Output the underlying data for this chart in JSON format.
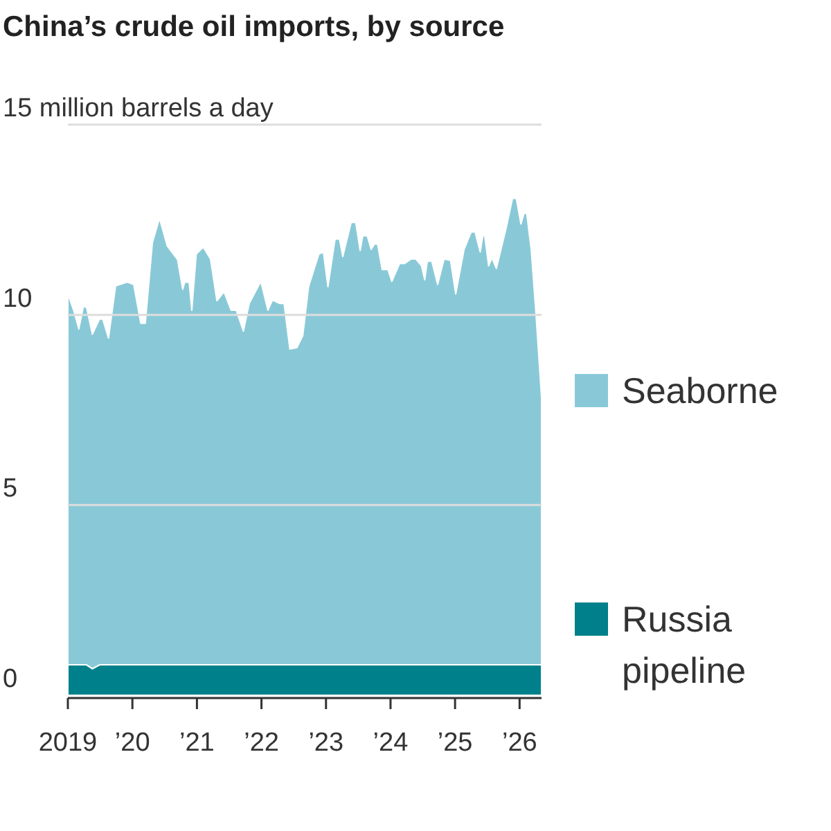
{
  "chart_data": {
    "type": "area",
    "stacked": true,
    "title": "China’s crude oil imports, by source",
    "x": [
      2019.0,
      2019.09,
      2019.17,
      2019.24,
      2019.29,
      2019.38,
      2019.49,
      2019.54,
      2019.63,
      2019.74,
      2019.92,
      2020.02,
      2020.13,
      2020.2,
      2020.31,
      2020.42,
      2020.54,
      2020.7,
      2020.78,
      2020.81,
      2020.88,
      2020.92,
      2020.99,
      2021.1,
      2021.21,
      2021.31,
      2021.42,
      2021.53,
      2021.61,
      2021.72,
      2021.81,
      2021.99,
      2022.1,
      2022.17,
      2022.28,
      2022.35,
      2022.44,
      2022.55,
      2022.64,
      2022.73,
      2022.89,
      2022.96,
      2023.03,
      2023.14,
      2023.21,
      2023.26,
      2023.39,
      2023.46,
      2023.53,
      2023.57,
      2023.64,
      2023.7,
      2023.75,
      2023.8,
      2023.87,
      2023.96,
      2024.02,
      2024.14,
      2024.22,
      2024.32,
      2024.39,
      2024.48,
      2024.53,
      2024.57,
      2024.64,
      2024.73,
      2024.83,
      2024.93,
      2025.01,
      2025.14,
      2025.25,
      2025.31,
      2025.39,
      2025.43,
      2025.46,
      2025.52,
      2025.57,
      2025.64,
      2025.79,
      2025.89,
      2025.95,
      2026.02,
      2026.07,
      2026.11,
      2026.18,
      2026.25,
      2026.34
    ],
    "series": [
      {
        "name": "Russia pipeline",
        "color": "#00808a",
        "values": [
          0.8,
          0.8,
          0.8,
          0.8,
          0.8,
          0.7,
          0.8,
          0.8,
          0.8,
          0.8,
          0.8,
          0.8,
          0.8,
          0.8,
          0.8,
          0.8,
          0.8,
          0.8,
          0.8,
          0.8,
          0.8,
          0.8,
          0.8,
          0.8,
          0.8,
          0.8,
          0.8,
          0.8,
          0.8,
          0.8,
          0.8,
          0.8,
          0.8,
          0.8,
          0.8,
          0.8,
          0.8,
          0.8,
          0.8,
          0.8,
          0.8,
          0.8,
          0.8,
          0.8,
          0.8,
          0.8,
          0.8,
          0.8,
          0.8,
          0.8,
          0.8,
          0.8,
          0.8,
          0.8,
          0.8,
          0.8,
          0.8,
          0.8,
          0.8,
          0.8,
          0.8,
          0.8,
          0.8,
          0.8,
          0.8,
          0.8,
          0.8,
          0.8,
          0.8,
          0.8,
          0.8,
          0.8,
          0.8,
          0.8,
          0.8,
          0.8,
          0.8,
          0.8,
          0.8,
          0.8,
          0.8,
          0.8,
          0.8,
          0.8,
          0.8,
          0.8,
          0.8
        ]
      },
      {
        "name": "Seaborne",
        "color": "#89c9d7",
        "values": [
          9.75,
          9.32,
          8.83,
          9.42,
          9.4,
          8.79,
          9.09,
          9.09,
          8.59,
          9.96,
          10.06,
          10.0,
          8.98,
          8.98,
          11.1,
          11.74,
          11.01,
          10.65,
          9.87,
          10.06,
          10.06,
          9.32,
          10.8,
          10.98,
          10.67,
          9.57,
          9.81,
          9.32,
          9.32,
          8.77,
          9.5,
          10.08,
          9.32,
          9.59,
          9.5,
          9.5,
          8.3,
          8.34,
          8.65,
          9.94,
          10.8,
          10.85,
          9.94,
          11.19,
          11.19,
          10.73,
          11.63,
          11.63,
          10.89,
          11.28,
          11.28,
          10.92,
          11.06,
          11.06,
          10.39,
          10.39,
          10.08,
          10.55,
          10.55,
          10.67,
          10.67,
          10.49,
          10.12,
          10.61,
          10.61,
          10.0,
          10.67,
          10.63,
          9.75,
          10.92,
          11.38,
          11.38,
          10.85,
          11.28,
          11.28,
          10.49,
          10.7,
          10.42,
          11.47,
          12.26,
          12.26,
          11.59,
          11.87,
          11.87,
          10.92,
          9.32,
          7.03
        ]
      }
    ],
    "xlim": [
      2019,
      2026.34
    ],
    "xticks": [
      2019,
      {
        "value": 2020,
        "label": "’20"
      },
      {
        "value": 2021,
        "label": "’21"
      },
      {
        "value": 2022,
        "label": "’22"
      },
      {
        "value": 2023,
        "label": "’23"
      },
      {
        "value": 2024,
        "label": "’24"
      },
      {
        "value": 2025,
        "label": "’25"
      },
      {
        "value": 2026,
        "label": "’26"
      }
    ],
    "ylim": [
      0,
      15
    ],
    "yticks": [
      0,
      5,
      10,
      {
        "value": 15,
        "label": "15 million barrels a day"
      }
    ],
    "grid": "y",
    "legend": "right"
  }
}
